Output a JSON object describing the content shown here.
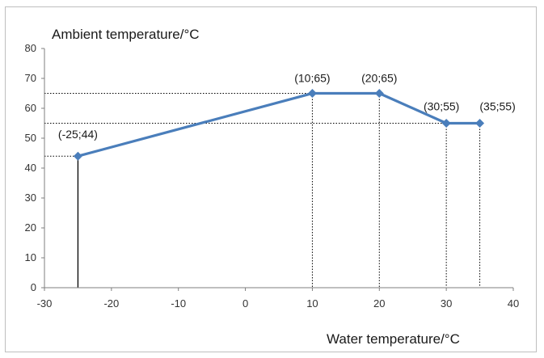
{
  "chart_data": {
    "type": "line",
    "xlabel": "Water temperature/°C",
    "ylabel": "Ambient temperature/°C",
    "xlim": [
      -30,
      40
    ],
    "ylim": [
      0,
      80
    ],
    "xticks": [
      -30,
      -20,
      -10,
      0,
      10,
      20,
      30,
      40
    ],
    "yticks": [
      0,
      10,
      20,
      30,
      40,
      50,
      60,
      70,
      80
    ],
    "grid": false,
    "series": [
      {
        "color": "#4a7ebb",
        "points": [
          {
            "x": -25,
            "y": 44,
            "label": "(-25;44)"
          },
          {
            "x": 10,
            "y": 65,
            "label": "(10;65)"
          },
          {
            "x": 20,
            "y": 65,
            "label": "(20;65)"
          },
          {
            "x": 30,
            "y": 55,
            "label": "(30;55)"
          },
          {
            "x": 35,
            "y": 55,
            "label": "(35;55)"
          }
        ]
      }
    ],
    "guide_line_color": "#000000",
    "axis_color": "#7f7f7f"
  }
}
